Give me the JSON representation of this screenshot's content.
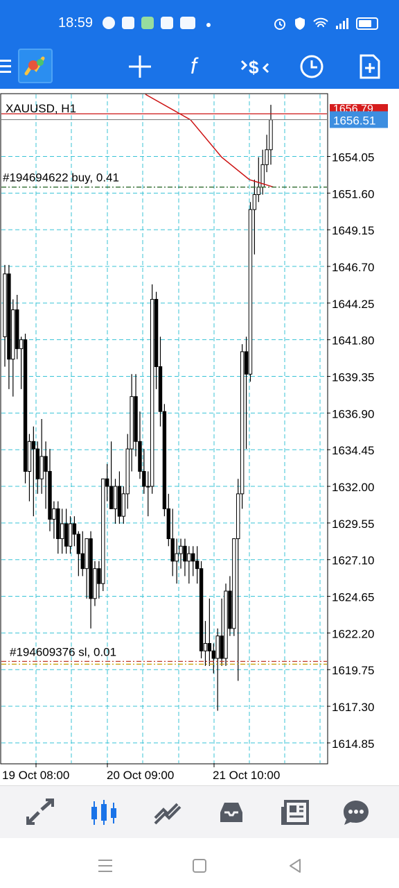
{
  "status_bar": {
    "time": "18:59",
    "icons": [
      "cloud-icon",
      "bao-icon",
      "shield-app-icon",
      "colorful-app-icon",
      "youtube-icon"
    ],
    "right_icons": [
      "alarm-icon",
      "vpn-s-icon",
      "wifi-icon",
      "signal-icon",
      "battery-icon"
    ]
  },
  "toolbar": {
    "buttons": [
      "menu-icon",
      "app-logo",
      "crosshair-icon",
      "indicator-f-icon",
      "symbol-dollar-icon",
      "timeframe-clock-icon",
      "new-order-icon"
    ]
  },
  "chart": {
    "symbol_label": "XAUUSD, H1",
    "current_price": "1656.51",
    "ask_price_partial": "1656.79",
    "price_axis": [
      "1654.05",
      "1651.60",
      "1649.15",
      "1646.70",
      "1644.25",
      "1641.80",
      "1639.35",
      "1636.90",
      "1634.45",
      "1632.00",
      "1629.55",
      "1627.10",
      "1624.65",
      "1622.20",
      "1619.75",
      "1617.30",
      "1614.85"
    ],
    "time_axis": [
      "19 Oct 08:00",
      "20 Oct 09:00",
      "21 Oct 10:00"
    ],
    "order_buy_label": "#194694622 buy, 0.41",
    "order_sl_label": "#194609376 sl, 0.01",
    "colors": {
      "background": "#ffffff",
      "grid": "#38c3d6",
      "candles": "#000000",
      "ma_line": "#cc1111",
      "ask_line": "#cc1111",
      "buy_line": "#2e6b2e",
      "sl_line": "#c0392b",
      "price_tag": "#3d8ee0"
    }
  },
  "chart_data": {
    "type": "candlestick",
    "title": "XAUUSD, H1",
    "ylim": [
      1613.5,
      1658.2
    ],
    "current_price": 1656.51,
    "buy_order_price": 1652.0,
    "sl_order_price": 1620.3,
    "candles_ohlc": [
      [
        1642.0,
        1646.8,
        1640.0,
        1646.2
      ],
      [
        1646.2,
        1646.8,
        1638.5,
        1640.5
      ],
      [
        1640.5,
        1644.5,
        1638.0,
        1643.8
      ],
      [
        1643.8,
        1644.8,
        1640.5,
        1641.2
      ],
      [
        1641.2,
        1642.0,
        1638.5,
        1641.8
      ],
      [
        1641.8,
        1642.2,
        1632.2,
        1633.0
      ],
      [
        1633.0,
        1635.5,
        1631.0,
        1635.0
      ],
      [
        1635.0,
        1636.0,
        1630.0,
        1634.5
      ],
      [
        1634.5,
        1635.0,
        1631.5,
        1632.5
      ],
      [
        1632.5,
        1636.5,
        1631.5,
        1634.0
      ],
      [
        1634.0,
        1635.0,
        1630.5,
        1633.0
      ],
      [
        1633.0,
        1634.5,
        1629.0,
        1629.8
      ],
      [
        1629.8,
        1631.0,
        1628.5,
        1630.5
      ],
      [
        1630.5,
        1631.0,
        1627.5,
        1628.5
      ],
      [
        1628.5,
        1630.5,
        1627.5,
        1629.5
      ],
      [
        1629.5,
        1630.5,
        1627.5,
        1628.0
      ],
      [
        1628.0,
        1630.0,
        1627.5,
        1629.5
      ],
      [
        1629.5,
        1630.0,
        1628.0,
        1628.8
      ],
      [
        1628.8,
        1629.0,
        1626.0,
        1627.5
      ],
      [
        1627.5,
        1629.0,
        1626.0,
        1626.5
      ],
      [
        1626.5,
        1628.5,
        1624.5,
        1628.5
      ],
      [
        1628.5,
        1629.0,
        1622.5,
        1624.5
      ],
      [
        1624.5,
        1627.0,
        1624.0,
        1626.5
      ],
      [
        1626.5,
        1627.0,
        1624.5,
        1625.5
      ],
      [
        1625.5,
        1632.5,
        1625.0,
        1632.5
      ],
      [
        1632.5,
        1633.5,
        1631.0,
        1632.0
      ],
      [
        1632.0,
        1635.0,
        1631.0,
        1630.5
      ],
      [
        1630.5,
        1632.5,
        1629.5,
        1632.0
      ],
      [
        1632.0,
        1633.0,
        1629.5,
        1630.0
      ],
      [
        1630.0,
        1632.0,
        1629.5,
        1631.5
      ],
      [
        1631.5,
        1635.5,
        1630.5,
        1634.5
      ],
      [
        1634.5,
        1639.5,
        1633.0,
        1638.0
      ],
      [
        1638.0,
        1639.5,
        1634.0,
        1635.0
      ],
      [
        1635.0,
        1637.0,
        1632.5,
        1633.0
      ],
      [
        1633.0,
        1634.5,
        1631.5,
        1632.0
      ],
      [
        1632.0,
        1633.0,
        1630.0,
        1632.0
      ],
      [
        1632.0,
        1645.5,
        1631.5,
        1644.5
      ],
      [
        1644.5,
        1645.0,
        1638.5,
        1640.0
      ],
      [
        1640.0,
        1642.0,
        1636.0,
        1637.0
      ],
      [
        1637.0,
        1637.5,
        1630.0,
        1630.5
      ],
      [
        1630.5,
        1631.5,
        1628.0,
        1628.5
      ],
      [
        1628.5,
        1630.5,
        1626.0,
        1627.0
      ],
      [
        1627.0,
        1628.5,
        1625.5,
        1627.5
      ],
      [
        1627.5,
        1628.5,
        1626.5,
        1628.0
      ],
      [
        1628.0,
        1628.5,
        1626.0,
        1627.0
      ],
      [
        1627.0,
        1628.0,
        1625.5,
        1627.5
      ],
      [
        1627.5,
        1628.0,
        1626.0,
        1627.0
      ],
      [
        1627.0,
        1628.0,
        1625.5,
        1626.5
      ],
      [
        1626.5,
        1627.0,
        1620.5,
        1621.0
      ],
      [
        1621.0,
        1623.0,
        1620.0,
        1621.5
      ],
      [
        1621.5,
        1624.5,
        1620.0,
        1621.0
      ],
      [
        1621.0,
        1621.5,
        1619.5,
        1620.5
      ],
      [
        1620.5,
        1622.5,
        1617.0,
        1622.0
      ],
      [
        1622.0,
        1624.5,
        1620.0,
        1620.5
      ],
      [
        1620.5,
        1625.5,
        1620.0,
        1625.0
      ],
      [
        1625.0,
        1626.0,
        1622.0,
        1622.5
      ],
      [
        1622.5,
        1628.0,
        1622.0,
        1628.5
      ],
      [
        1628.5,
        1632.5,
        1619.0,
        1631.5
      ],
      [
        1631.5,
        1641.5,
        1630.5,
        1641.0
      ],
      [
        1641.0,
        1642.0,
        1634.5,
        1639.5
      ],
      [
        1639.5,
        1651.0,
        1639.0,
        1650.5
      ],
      [
        1650.5,
        1652.5,
        1647.5,
        1651.5
      ],
      [
        1651.5,
        1654.0,
        1651.0,
        1652.0
      ],
      [
        1652.0,
        1654.5,
        1651.5,
        1653.5
      ],
      [
        1653.5,
        1655.5,
        1653.0,
        1654.5
      ],
      [
        1654.5,
        1657.5,
        1653.5,
        1656.5
      ]
    ],
    "moving_average_visible_segment": [
      1661.0,
      1656.5,
      1654.0,
      1652.5,
      1652.0
    ]
  },
  "bottom_nav": {
    "items": [
      "quotes-icon",
      "chart-icon",
      "trade-icon",
      "history-icon",
      "news-icon",
      "chat-icon"
    ],
    "active": "chart-icon",
    "active_color": "#1a73e8",
    "inactive_color": "#555a64"
  },
  "system_nav": {
    "items": [
      "recents-icon",
      "home-icon",
      "back-icon"
    ]
  }
}
